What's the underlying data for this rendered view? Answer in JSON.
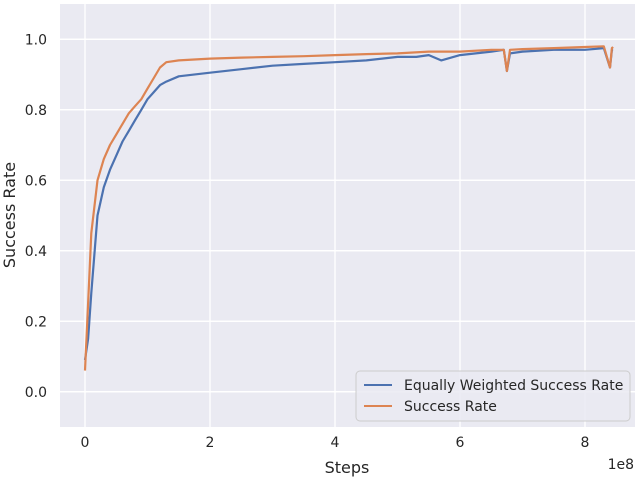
{
  "chart_data": {
    "type": "line",
    "xlabel": "Steps",
    "ylabel": "Success Rate",
    "x_offset_text": "1e8",
    "xlim": [
      -40000000,
      880000000
    ],
    "ylim": [
      -0.1,
      1.1
    ],
    "xticks": [
      0,
      200000000,
      400000000,
      600000000,
      800000000
    ],
    "xtick_labels": [
      "0",
      "2",
      "4",
      "6",
      "8"
    ],
    "yticks": [
      0.0,
      0.2,
      0.4,
      0.6,
      0.8,
      1.0
    ],
    "ytick_labels": [
      "0.0",
      "0.2",
      "0.4",
      "0.6",
      "0.8",
      "1.0"
    ],
    "grid": true,
    "legend_position": "lower-right",
    "background": "#eaeaf2",
    "series": [
      {
        "name": "Equally Weighted Success Rate",
        "color": "#4c72b0",
        "x": [
          0,
          5000000,
          10000000,
          20000000,
          30000000,
          40000000,
          50000000,
          60000000,
          70000000,
          80000000,
          90000000,
          100000000,
          110000000,
          120000000,
          130000000,
          150000000,
          200000000,
          250000000,
          300000000,
          350000000,
          400000000,
          450000000,
          500000000,
          530000000,
          550000000,
          570000000,
          600000000,
          650000000,
          670000000,
          675000000,
          680000000,
          700000000,
          750000000,
          800000000,
          830000000,
          840000000,
          843000000,
          845000000
        ],
        "y": [
          0.09,
          0.15,
          0.28,
          0.5,
          0.58,
          0.63,
          0.67,
          0.71,
          0.74,
          0.77,
          0.8,
          0.83,
          0.85,
          0.87,
          0.88,
          0.895,
          0.905,
          0.915,
          0.925,
          0.93,
          0.935,
          0.94,
          0.95,
          0.95,
          0.955,
          0.94,
          0.955,
          0.965,
          0.97,
          0.91,
          0.96,
          0.965,
          0.97,
          0.97,
          0.975,
          0.92,
          0.97,
          0.97
        ]
      },
      {
        "name": "Success Rate",
        "color": "#dd8452",
        "x": [
          0,
          5000000,
          10000000,
          20000000,
          30000000,
          40000000,
          50000000,
          60000000,
          70000000,
          80000000,
          90000000,
          100000000,
          110000000,
          120000000,
          130000000,
          150000000,
          200000000,
          250000000,
          300000000,
          350000000,
          400000000,
          450000000,
          500000000,
          550000000,
          600000000,
          650000000,
          670000000,
          675000000,
          680000000,
          700000000,
          750000000,
          800000000,
          830000000,
          840000000,
          843000000,
          845000000
        ],
        "y": [
          0.06,
          0.25,
          0.45,
          0.6,
          0.66,
          0.7,
          0.73,
          0.76,
          0.79,
          0.81,
          0.83,
          0.86,
          0.89,
          0.92,
          0.935,
          0.94,
          0.945,
          0.948,
          0.95,
          0.952,
          0.955,
          0.958,
          0.96,
          0.965,
          0.965,
          0.97,
          0.97,
          0.91,
          0.97,
          0.972,
          0.975,
          0.978,
          0.98,
          0.92,
          0.975,
          0.978
        ]
      }
    ]
  }
}
